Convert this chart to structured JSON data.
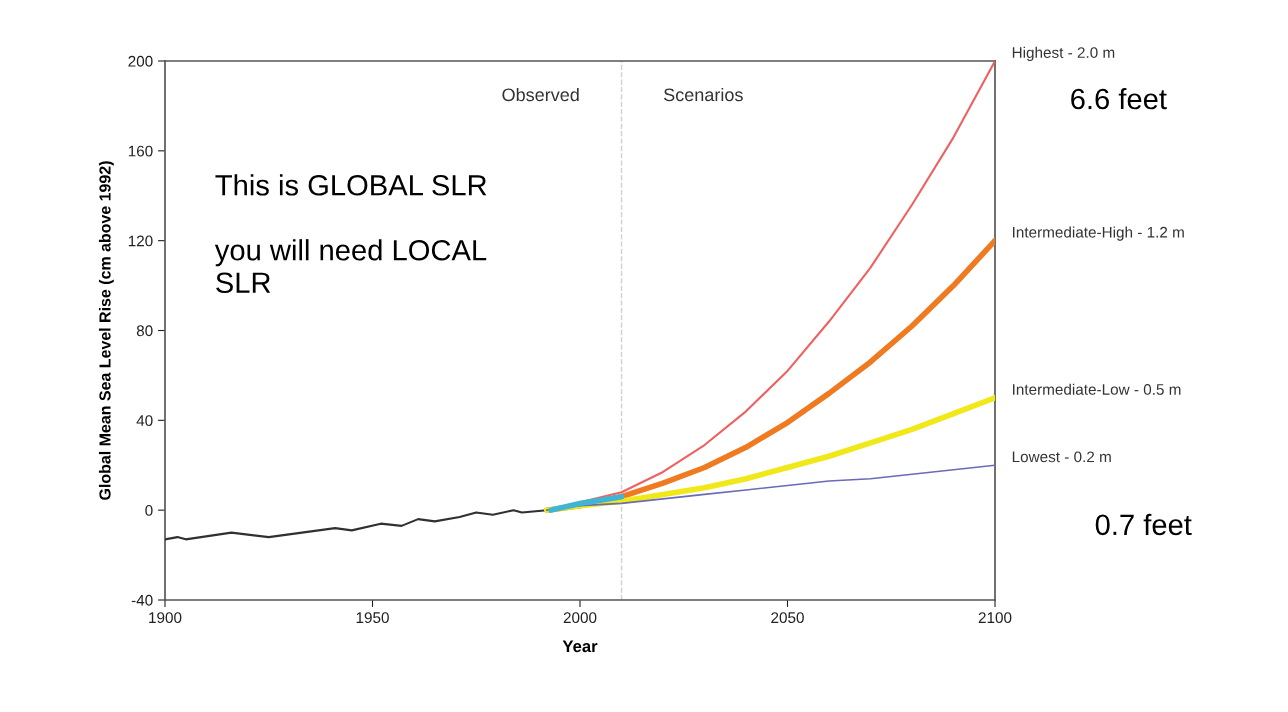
{
  "chart_data": {
    "type": "line",
    "xlabel": "Year",
    "ylabel": "Global Mean Sea Level Rise (cm above 1992)",
    "xlim": [
      1900,
      2100
    ],
    "xticks": [
      1900,
      1950,
      2000,
      2050,
      2100
    ],
    "ylim": [
      -40,
      200
    ],
    "yticks": [
      -40,
      0,
      40,
      80,
      120,
      160,
      200
    ],
    "grid": false,
    "legend": false,
    "marker": "none",
    "line_style": "solid",
    "ref_lines": [
      {
        "axis": "x",
        "value": 2010,
        "color": "#d0d0d0",
        "line_style": "dashed"
      }
    ],
    "annotations": [
      "Observed",
      "Scenarios",
      "This is GLOBAL SLR\n\nyou will need LOCAL\nSLR",
      "6.6 feet",
      "0.7 feet"
    ],
    "series": [
      {
        "color": "#303030",
        "x": [
          1900,
          1903,
          1905,
          1916,
          1925,
          1933,
          1941,
          1945,
          1952,
          1957,
          1961,
          1965,
          1971,
          1975,
          1979,
          1984,
          1986,
          1992
        ],
        "values": [
          -13,
          -12,
          -13,
          -10,
          -12,
          -10,
          -8,
          -9,
          -6,
          -7,
          -4,
          -5,
          -3,
          -1,
          -2,
          0,
          -1,
          0
        ]
      },
      {
        "name": "Highest - 2.0 m",
        "color": "#f06060",
        "x": [
          1992,
          2010,
          2020,
          2030,
          2040,
          2050,
          2060,
          2070,
          2080,
          2090,
          2100
        ],
        "values": [
          0,
          8,
          17,
          29,
          44,
          62,
          84,
          108,
          136,
          166,
          200
        ]
      },
      {
        "name": "Intermediate-High - 1.2 m",
        "color": "#f07a20",
        "x": [
          1992,
          2000,
          2010,
          2020,
          2030,
          2040,
          2050,
          2060,
          2070,
          2080,
          2090,
          2100
        ],
        "values": [
          0,
          2,
          6,
          12,
          19,
          28,
          39,
          52,
          66,
          82,
          100,
          120
        ]
      },
      {
        "name": "Intermediate-Low - 0.5 m",
        "color": "#f0e818",
        "x": [
          1992,
          2000,
          2010,
          2020,
          2030,
          2040,
          2050,
          2060,
          2070,
          2080,
          2090,
          2100
        ],
        "values": [
          0,
          2,
          4,
          7,
          10,
          14,
          19,
          24,
          30,
          36,
          43,
          50
        ]
      },
      {
        "name": "Lowest - 0.2 m",
        "color": "#6a6ab8",
        "x": [
          1992,
          2000,
          2010,
          2020,
          2030,
          2040,
          2050,
          2060,
          2070,
          2080,
          2090,
          2100
        ],
        "values": [
          0,
          2,
          3,
          5,
          7,
          9,
          11,
          13,
          14,
          16,
          18,
          20
        ]
      },
      {
        "color": "#40b4d4",
        "x": [
          1993,
          2000,
          2010
        ],
        "values": [
          0,
          3,
          6
        ]
      }
    ]
  }
}
